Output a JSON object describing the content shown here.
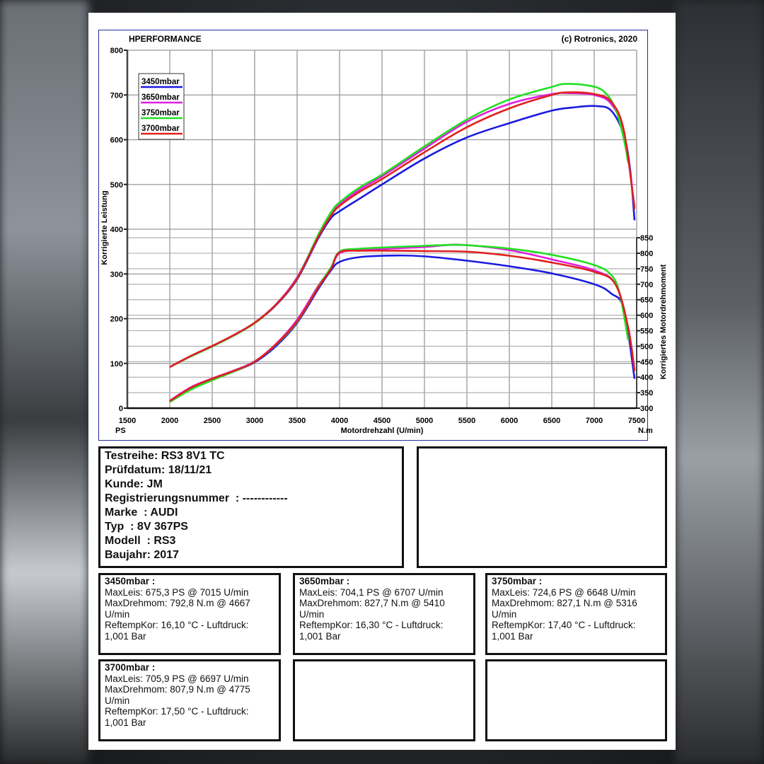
{
  "header": {
    "left": "HPERFORMANCE",
    "right": "(c) Rotronics, 2020"
  },
  "chart_data": {
    "type": "line",
    "xlabel": "Motordrehzahl (U/min)",
    "ylabel_left": "Korrigierte Leistung",
    "ylabel_right": "Korrigiertes Motordrehmoment",
    "unit_left": "PS",
    "unit_right": "N.m",
    "xlim": [
      1500,
      7500
    ],
    "ylim_left": [
      0,
      800
    ],
    "ylim_right": [
      300,
      850
    ],
    "x_ticks": [
      1500,
      2000,
      2500,
      3000,
      3500,
      4000,
      4500,
      5000,
      5500,
      6000,
      6500,
      7000,
      7500
    ],
    "y_ticks_left": [
      0,
      100,
      200,
      300,
      400,
      500,
      600,
      700,
      800
    ],
    "y_ticks_right": [
      300,
      350,
      400,
      450,
      500,
      550,
      600,
      650,
      700,
      750,
      800,
      850
    ],
    "grid": true,
    "legend_position": "top-left",
    "series": [
      {
        "name": "3450mbar",
        "color": "#1a1ae0",
        "power": {
          "rpm": [
            2000,
            2250,
            2500,
            2750,
            3000,
            3250,
            3500,
            3750,
            3900,
            4000,
            4250,
            4500,
            5000,
            5500,
            6000,
            6500,
            6750,
            7015,
            7200,
            7350,
            7425,
            7475
          ],
          "ps": [
            92,
            116,
            138,
            162,
            190,
            230,
            288,
            380,
            425,
            440,
            470,
            500,
            558,
            605,
            637,
            665,
            672,
            675.3,
            665,
            610,
            530,
            420
          ]
        },
        "torque": {
          "rpm": [
            2000,
            2250,
            2500,
            2750,
            3000,
            3250,
            3500,
            3750,
            3900,
            4000,
            4250,
            4667,
            5000,
            5500,
            6000,
            6500,
            7000,
            7200,
            7350,
            7475
          ],
          "nm": [
            322,
            362,
            392,
            418,
            448,
            500,
            575,
            685,
            745,
            772,
            788,
            792.8,
            790,
            776,
            758,
            735,
            700,
            670,
            620,
            395
          ]
        }
      },
      {
        "name": "3650mbar",
        "color": "#e020e0",
        "power": {
          "rpm": [
            2000,
            2250,
            2500,
            2750,
            3000,
            3250,
            3500,
            3750,
            3900,
            4000,
            4250,
            4500,
            5000,
            5500,
            6000,
            6500,
            6707,
            7000,
            7200,
            7350,
            7475
          ],
          "ps": [
            92,
            117,
            139,
            163,
            191,
            232,
            292,
            385,
            432,
            455,
            490,
            518,
            580,
            640,
            680,
            702,
            704.1,
            700,
            680,
            615,
            450
          ]
        },
        "torque": {
          "rpm": [
            2000,
            2250,
            2500,
            2750,
            3000,
            3250,
            3500,
            3750,
            3900,
            4000,
            4250,
            5000,
            5410,
            6000,
            6500,
            7000,
            7250,
            7400,
            7475
          ],
          "nm": [
            324,
            368,
            396,
            421,
            451,
            507,
            585,
            695,
            752,
            800,
            810,
            820,
            827.7,
            810,
            780,
            745,
            700,
            560,
            420
          ]
        }
      },
      {
        "name": "3750mbar",
        "color": "#22e022",
        "power": {
          "rpm": [
            2000,
            2250,
            2500,
            2750,
            3000,
            3250,
            3500,
            3750,
            3900,
            4000,
            4250,
            4500,
            5000,
            5500,
            6000,
            6500,
            6648,
            6900,
            7100,
            7250,
            7350,
            7400
          ],
          "ps": [
            92,
            116,
            138,
            162,
            190,
            231,
            290,
            388,
            438,
            460,
            495,
            522,
            585,
            645,
            690,
            718,
            724.6,
            722,
            710,
            670,
            600,
            549
          ]
        },
        "torque": {
          "rpm": [
            2000,
            2250,
            2500,
            2750,
            3000,
            3250,
            3500,
            3750,
            3900,
            4000,
            4250,
            5000,
            5316,
            5500,
            6000,
            6500,
            7000,
            7200,
            7300,
            7400
          ],
          "nm": [
            320,
            360,
            390,
            418,
            450,
            505,
            578,
            692,
            755,
            805,
            815,
            824,
            827.1,
            826,
            815,
            795,
            762,
            730,
            670,
            520
          ]
        }
      },
      {
        "name": "3700mbar",
        "color": "#e02020",
        "power": {
          "rpm": [
            2000,
            2250,
            2500,
            2750,
            3000,
            3250,
            3500,
            3750,
            3900,
            4000,
            4250,
            4500,
            5000,
            5500,
            6000,
            6500,
            6697,
            7000,
            7200,
            7350,
            7475
          ],
          "ps": [
            92,
            117,
            139,
            163,
            191,
            231,
            290,
            383,
            430,
            452,
            485,
            512,
            572,
            628,
            670,
            700,
            705.9,
            702,
            685,
            620,
            445
          ]
        },
        "torque": {
          "rpm": [
            2000,
            2250,
            2500,
            2750,
            3000,
            3250,
            3500,
            3750,
            3900,
            4000,
            4250,
            4775,
            5000,
            5500,
            6000,
            6500,
            7000,
            7250,
            7400,
            7475
          ],
          "nm": [
            323,
            366,
            395,
            420,
            450,
            506,
            580,
            690,
            750,
            803,
            808,
            807.9,
            807,
            805,
            792,
            770,
            740,
            700,
            560,
            420
          ]
        }
      }
    ]
  },
  "info": {
    "lines": [
      "Testreihe: RS3 8V1 TC",
      "Prüfdatum: 18/11/21",
      "Kunde: JM",
      "Registrierungsnummer  : ------------",
      "Marke  : AUDI",
      "Typ  : 8V 367PS",
      "Modell  : RS3",
      "Baujahr: 2017"
    ]
  },
  "results": [
    {
      "title": "3450mbar :",
      "maxleis": "MaxLeis: 675,3 PS @ 7015 U/min",
      "maxdreh": "MaxDrehmom: 792,8 N.m @ 4667 U/min",
      "reftemp": "ReftempKor: 16,10 °C - Luftdruck: 1,001 Bar"
    },
    {
      "title": "3650mbar :",
      "maxleis": "MaxLeis: 704,1 PS @ 6707 U/min",
      "maxdreh": "MaxDrehmom: 827,7 N.m @ 5410 U/min",
      "reftemp": "ReftempKor: 16,30 °C - Luftdruck: 1,001 Bar"
    },
    {
      "title": "3750mbar :",
      "maxleis": "MaxLeis: 724,6 PS @ 6648 U/min",
      "maxdreh": "MaxDrehmom: 827,1 N.m @ 5316 U/min",
      "reftemp": "ReftempKor: 17,40 °C - Luftdruck: 1,001 Bar"
    },
    {
      "title": "3700mbar :",
      "maxleis": "MaxLeis: 705,9 PS @ 6697 U/min",
      "maxdreh": "MaxDrehmom: 807,9 N.m @ 4775 U/min",
      "reftemp": "ReftempKor: 17,50 °C - Luftdruck: 1,001 Bar"
    }
  ]
}
